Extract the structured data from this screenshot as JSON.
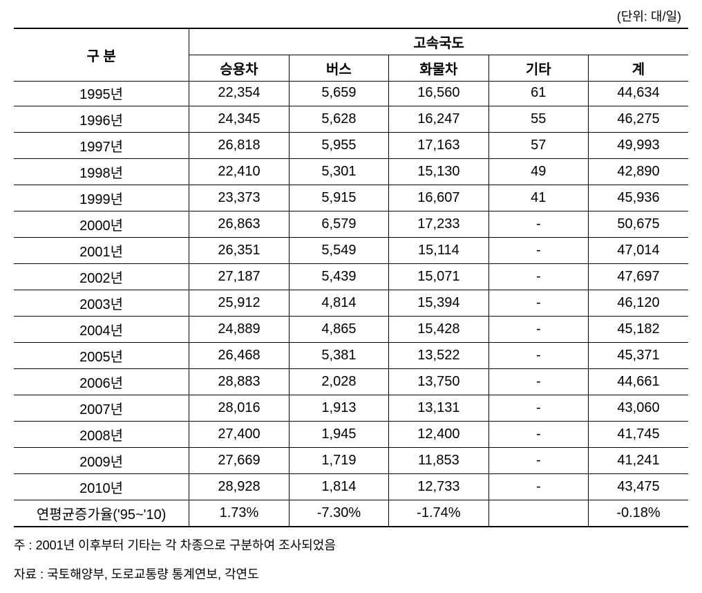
{
  "unit_label": "(단위: 대/일)",
  "header": {
    "category": "구 분",
    "main_group": "고속국도",
    "columns": [
      "승용차",
      "버스",
      "화물차",
      "기타",
      "계"
    ]
  },
  "rows": [
    {
      "label": "1995년",
      "values": [
        "22,354",
        "5,659",
        "16,560",
        "61",
        "44,634"
      ]
    },
    {
      "label": "1996년",
      "values": [
        "24,345",
        "5,628",
        "16,247",
        "55",
        "46,275"
      ]
    },
    {
      "label": "1997년",
      "values": [
        "26,818",
        "5,955",
        "17,163",
        "57",
        "49,993"
      ]
    },
    {
      "label": "1998년",
      "values": [
        "22,410",
        "5,301",
        "15,130",
        "49",
        "42,890"
      ]
    },
    {
      "label": "1999년",
      "values": [
        "23,373",
        "5,915",
        "16,607",
        "41",
        "45,936"
      ]
    },
    {
      "label": "2000년",
      "values": [
        "26,863",
        "6,579",
        "17,233",
        "-",
        "50,675"
      ]
    },
    {
      "label": "2001년",
      "values": [
        "26,351",
        "5,549",
        "15,114",
        "-",
        "47,014"
      ]
    },
    {
      "label": "2002년",
      "values": [
        "27,187",
        "5,439",
        "15,071",
        "-",
        "47,697"
      ]
    },
    {
      "label": "2003년",
      "values": [
        "25,912",
        "4,814",
        "15,394",
        "-",
        "46,120"
      ]
    },
    {
      "label": "2004년",
      "values": [
        "24,889",
        "4,865",
        "15,428",
        "-",
        "45,182"
      ]
    },
    {
      "label": "2005년",
      "values": [
        "26,468",
        "5,381",
        "13,522",
        "-",
        "45,371"
      ]
    },
    {
      "label": "2006년",
      "values": [
        "28,883",
        "2,028",
        "13,750",
        "-",
        "44,661"
      ]
    },
    {
      "label": "2007년",
      "values": [
        "28,016",
        "1,913",
        "13,131",
        "-",
        "43,060"
      ]
    },
    {
      "label": "2008년",
      "values": [
        "27,400",
        "1,945",
        "12,400",
        "-",
        "41,745"
      ]
    },
    {
      "label": "2009년",
      "values": [
        "27,669",
        "1,719",
        "11,853",
        "-",
        "41,241"
      ]
    },
    {
      "label": "2010년",
      "values": [
        "28,928",
        "1,814",
        "12,733",
        "-",
        "43,475"
      ]
    },
    {
      "label": "연평균증가율('95~'10)",
      "values": [
        "1.73%",
        "-7.30%",
        "-1.74%",
        "",
        "-0.18%"
      ]
    }
  ],
  "footnotes": [
    "주 : 2001년 이후부터 기타는 각 차종으로 구분하여 조사되었음",
    "자료 : 국토해양부, 도로교통량 통계연보, 각연도"
  ],
  "styling": {
    "background_color": "#ffffff",
    "text_color": "#000000",
    "border_color": "#000000",
    "font_family": "Malgun Gothic",
    "base_font_size": 20,
    "unit_font_size": 18,
    "footnote_font_size": 18,
    "col_widths_pct": [
      26,
      14.8,
      14.8,
      14.8,
      14.8,
      14.8
    ]
  }
}
